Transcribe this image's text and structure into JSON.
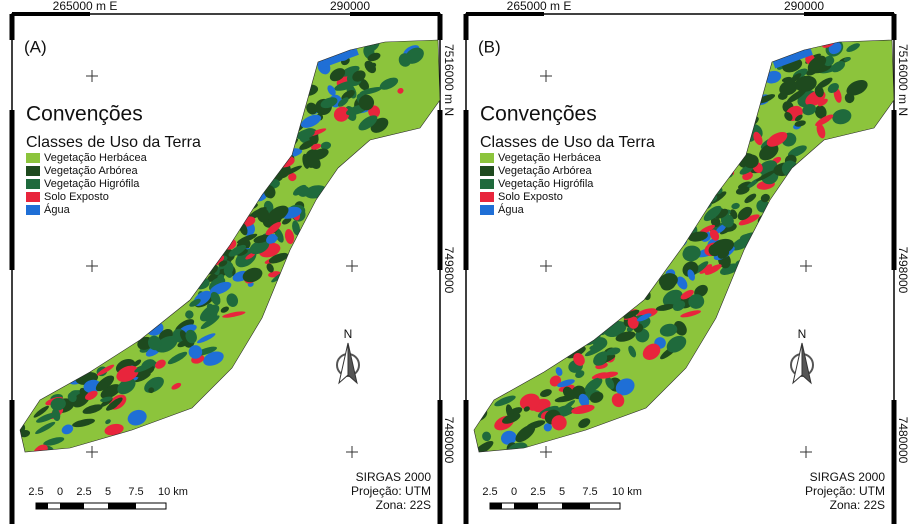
{
  "panels": [
    {
      "label": "(A)"
    },
    {
      "label": "(B)"
    }
  ],
  "grid_labels": {
    "easting": [
      "265000 m E",
      "290000"
    ],
    "northing": [
      "7516000 m N",
      "7498000",
      "7480000"
    ]
  },
  "legend": {
    "title": "Convenções",
    "subtitle": "Classes de Uso da Terra",
    "classes": [
      {
        "name": "Vegetação Herbácea",
        "color": "#8cc43c"
      },
      {
        "name": "Vegetação Arbórea",
        "color": "#1e4a1e"
      },
      {
        "name": "Vegetação Higrófila",
        "color": "#1f6a3c"
      },
      {
        "name": "Solo Exposto",
        "color": "#e8253c"
      },
      {
        "name": "Água",
        "color": "#1f6fd6"
      }
    ]
  },
  "scale_bar": {
    "labels": [
      "2.5",
      "0",
      "2.5",
      "5",
      "7.5",
      "10 km"
    ]
  },
  "projection": [
    "SIRGAS 2000",
    "Projeção: UTM",
    "Zona: 22S"
  ],
  "north": "N"
}
